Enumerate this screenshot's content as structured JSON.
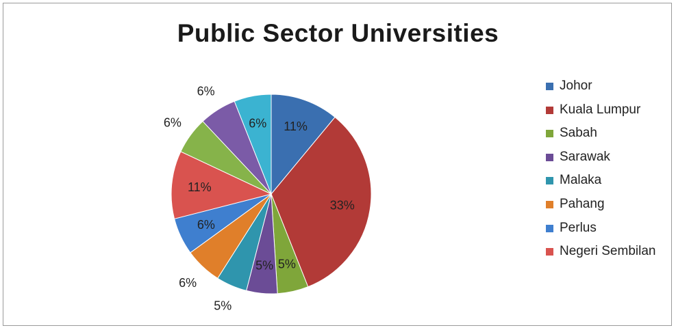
{
  "chart_data": {
    "type": "pie",
    "title": "Public Sector Universities",
    "legend_position": "right",
    "slices": [
      {
        "name": "Johor",
        "value": 11,
        "label": "11%",
        "color": "#3a6fb0",
        "label_inside": true
      },
      {
        "name": "Kuala Lumpur",
        "value": 33,
        "label": "33%",
        "color": "#b23a37",
        "label_inside": true
      },
      {
        "name": "Sabah",
        "value": 5,
        "label": "5%",
        "color": "#7fa63a",
        "label_inside": true
      },
      {
        "name": "Sarawak",
        "value": 5,
        "label": "5%",
        "color": "#6b4c96",
        "label_inside": true
      },
      {
        "name": "Malaka",
        "value": 5,
        "label": "5%",
        "color": "#2f95ad",
        "label_inside": false
      },
      {
        "name": "Pahang",
        "value": 6,
        "label": "6%",
        "color": "#e07f2a",
        "label_inside": false
      },
      {
        "name": "Perlus",
        "value": 6,
        "label": "6%",
        "color": "#3f7fcf",
        "label_inside": true
      },
      {
        "name": "Negeri Sembilan",
        "value": 11,
        "label": "11%",
        "color": "#d9534f",
        "label_inside": true
      },
      {
        "name": "",
        "value": 6,
        "label": "6%",
        "color": "#86b34a",
        "label_inside": false
      },
      {
        "name": "",
        "value": 6,
        "label": "6%",
        "color": "#7b5ba7",
        "label_inside": false
      },
      {
        "name": "",
        "value": 6,
        "label": "6%",
        "color": "#3bb3d1",
        "label_inside": true
      }
    ]
  }
}
